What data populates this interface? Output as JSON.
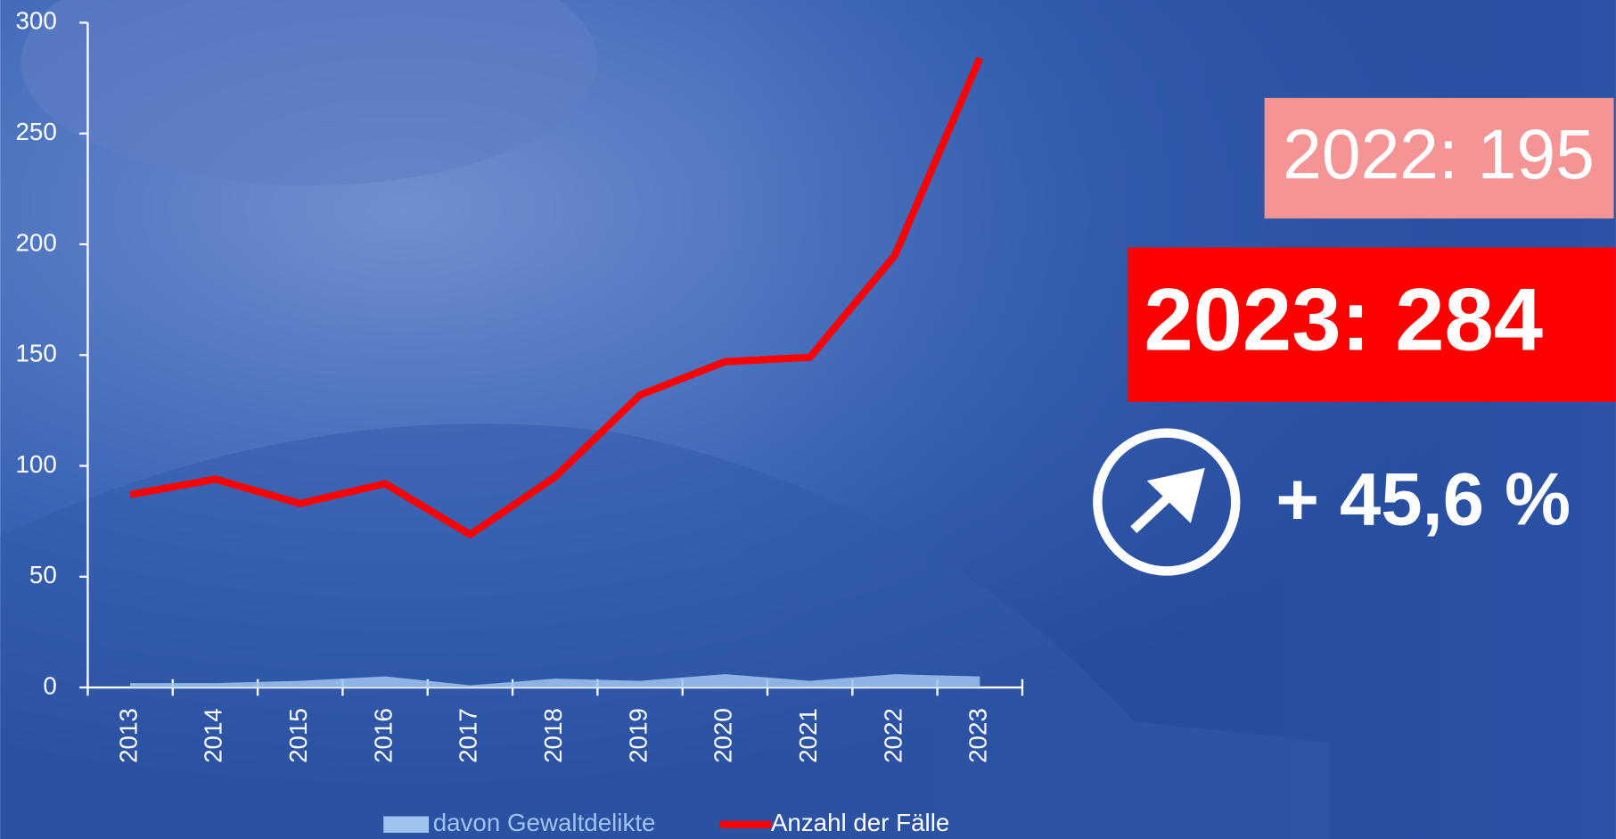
{
  "chart_data": {
    "type": "line",
    "categories": [
      "2013",
      "2014",
      "2015",
      "2016",
      "2017",
      "2018",
      "2019",
      "2020",
      "2021",
      "2022",
      "2023"
    ],
    "series": [
      {
        "name": "davon Gewaltdelikte",
        "color": "#9fc3ee",
        "kind": "area",
        "values": [
          2,
          2,
          3,
          5,
          1,
          4,
          3,
          6,
          3,
          6,
          5
        ]
      },
      {
        "name": "Anzahl der Fälle",
        "color": "#ff0000",
        "kind": "line",
        "values": [
          87,
          94,
          83,
          92,
          69,
          95,
          132,
          147,
          149,
          195,
          284
        ]
      }
    ],
    "ylim": [
      0,
      300
    ],
    "yticks": [
      0,
      50,
      100,
      150,
      200,
      250,
      300
    ],
    "annotations": [
      "2022: 195",
      "2023: 284",
      "+ 45,6 %"
    ]
  }
}
